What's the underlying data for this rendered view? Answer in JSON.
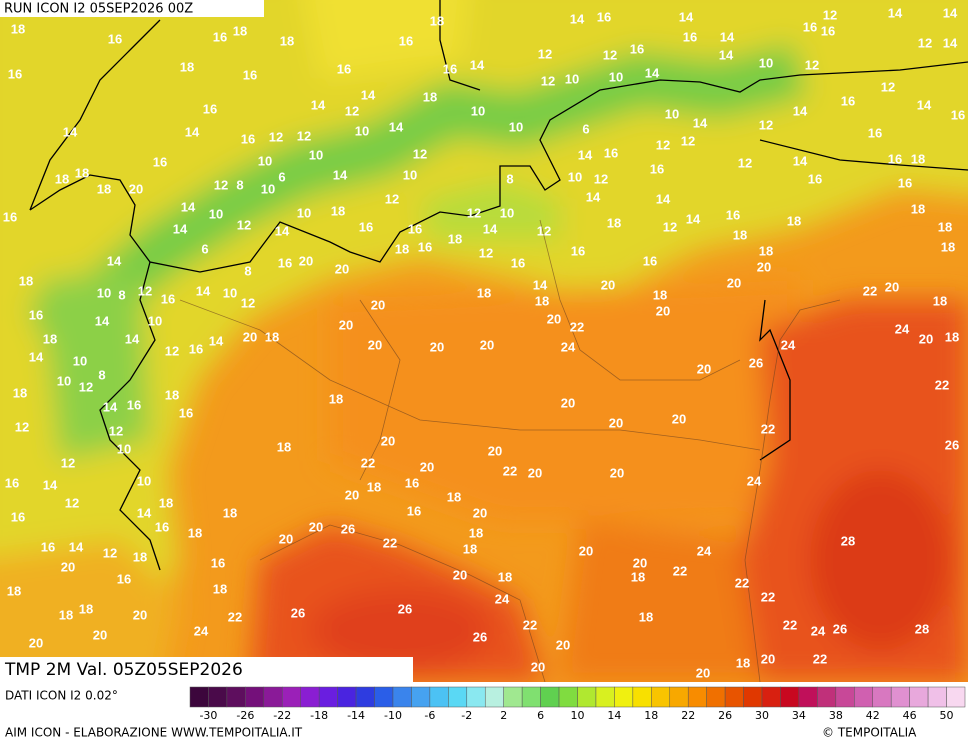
{
  "header": {
    "title": "RUN ICON I2 05SEP2026 00Z"
  },
  "map": {
    "variable": "TMP 2M Val. 05Z05SEP2026",
    "labels": [
      18,
      16,
      16,
      18,
      18,
      16,
      18,
      14,
      16,
      14,
      12,
      14,
      14,
      16,
      18,
      16,
      16,
      16,
      14,
      12,
      12,
      16,
      16,
      14,
      16,
      16,
      12,
      14,
      16,
      14,
      12,
      14,
      18,
      10,
      12,
      10,
      10,
      14,
      14,
      10,
      12,
      12,
      16,
      14,
      16,
      14,
      14,
      16,
      12,
      12,
      10,
      14,
      10,
      6,
      10,
      14,
      12,
      14,
      16,
      16,
      10,
      10,
      12,
      14,
      16,
      12,
      12,
      12,
      14,
      16,
      18,
      18,
      18,
      18,
      20,
      12,
      8,
      10,
      6,
      14,
      10,
      8,
      10,
      12,
      16,
      16,
      16,
      16,
      14,
      10,
      10,
      18,
      12,
      12,
      10,
      14,
      14,
      16,
      18,
      14,
      12,
      14,
      16,
      16,
      18,
      14,
      12,
      18,
      12,
      14,
      18,
      18,
      18,
      6,
      16,
      20,
      20,
      18,
      16,
      12,
      16,
      16,
      16,
      18,
      20,
      18,
      18,
      14,
      8,
      18,
      14,
      20,
      18,
      20,
      22,
      20,
      18,
      10,
      8,
      12,
      16,
      14,
      10,
      12,
      18,
      20,
      16,
      14,
      10,
      20,
      20,
      22,
      24,
      20,
      18,
      18,
      14,
      12,
      16,
      14,
      20,
      18,
      20,
      20,
      20,
      20,
      24,
      24,
      14,
      10,
      8,
      12,
      10,
      26,
      20,
      22,
      18,
      14,
      16,
      18,
      16,
      18,
      20,
      12,
      12,
      10,
      20,
      20,
      22,
      26,
      18,
      20,
      22,
      20,
      20,
      22,
      20,
      20,
      12,
      16,
      14,
      10,
      18,
      20,
      18,
      16,
      18,
      24,
      16,
      12,
      14,
      16,
      18,
      18,
      16,
      20,
      18,
      16,
      14,
      12,
      18,
      20,
      20,
      26,
      22,
      18,
      20,
      24,
      28,
      20,
      16,
      16,
      20,
      18,
      20,
      18,
      22,
      18,
      18,
      24,
      22,
      22,
      18,
      18,
      20,
      22,
      26,
      26,
      22,
      18,
      22,
      24,
      26,
      28,
      20,
      24,
      26,
      20,
      20,
      20,
      20,
      18,
      20,
      22
    ]
  },
  "colorbar": {
    "ticks": [
      -30,
      -26,
      -22,
      -18,
      -14,
      -10,
      -6,
      -2,
      2,
      6,
      10,
      14,
      18,
      22,
      26,
      30,
      34,
      38,
      42,
      46,
      50
    ],
    "colors": [
      "#3c063c",
      "#4a0a4a",
      "#5e0e5e",
      "#74107a",
      "#8a1a98",
      "#9b20b8",
      "#8a1ed2",
      "#6a1ee0",
      "#4a24e0",
      "#2e3ce0",
      "#2a5ee8",
      "#3a84ec",
      "#46a2f0",
      "#4cc2f4",
      "#5ad8f4",
      "#8ae8f0",
      "#b8f0e0",
      "#a0e890",
      "#80e070",
      "#60d050",
      "#80dc40",
      "#b0e830",
      "#d8f020",
      "#f0f010",
      "#f8e000",
      "#f8c400",
      "#f8a800",
      "#f88c00",
      "#f07000",
      "#e85400",
      "#e03800",
      "#d82010",
      "#c80820",
      "#c0105a",
      "#c0307a",
      "#c84898",
      "#d060b0",
      "#d878c0",
      "#e090d0",
      "#e8a8dc",
      "#f0c0e8",
      "#f8d8f0"
    ]
  },
  "footer": {
    "source": "DATI ICON I2 0.02°",
    "credit": "AIM ICON - ELABORAZIONE WWW.TEMPOITALIA.IT",
    "copyright": "© TEMPOITALIA"
  }
}
